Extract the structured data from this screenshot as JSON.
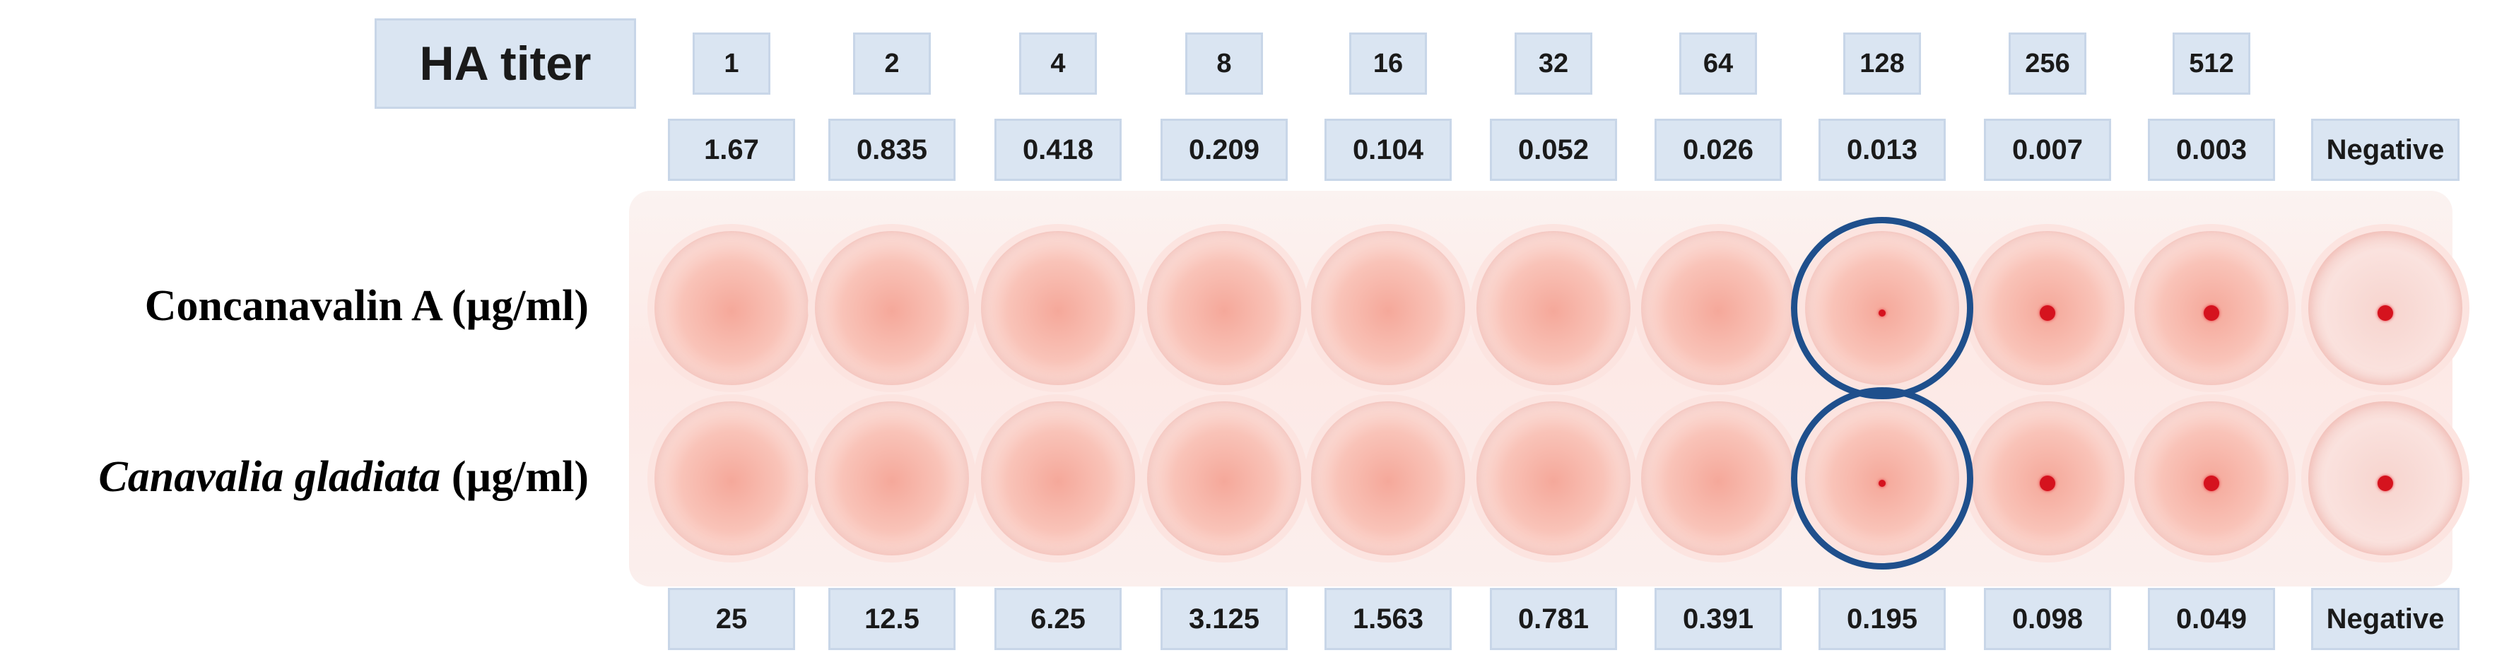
{
  "title": "HA titer",
  "titers": [
    "1",
    "2",
    "4",
    "8",
    "16",
    "32",
    "64",
    "128",
    "256",
    "512"
  ],
  "conc_a": [
    "1.67",
    "0.835",
    "0.418",
    "0.209",
    "0.104",
    "0.052",
    "0.026",
    "0.013",
    "0.007",
    "0.003",
    "Negative"
  ],
  "conc_b": [
    "25",
    "12.5",
    "6.25",
    "3.125",
    "1.563",
    "0.781",
    "0.391",
    "0.195",
    "0.098",
    "0.049",
    "Negative"
  ],
  "row_a_label": "Concanavalin A (µg/ml)",
  "row_b_label_italic": "Canavalia gladiata",
  "row_b_label_unit": " (µg/ml)"
}
